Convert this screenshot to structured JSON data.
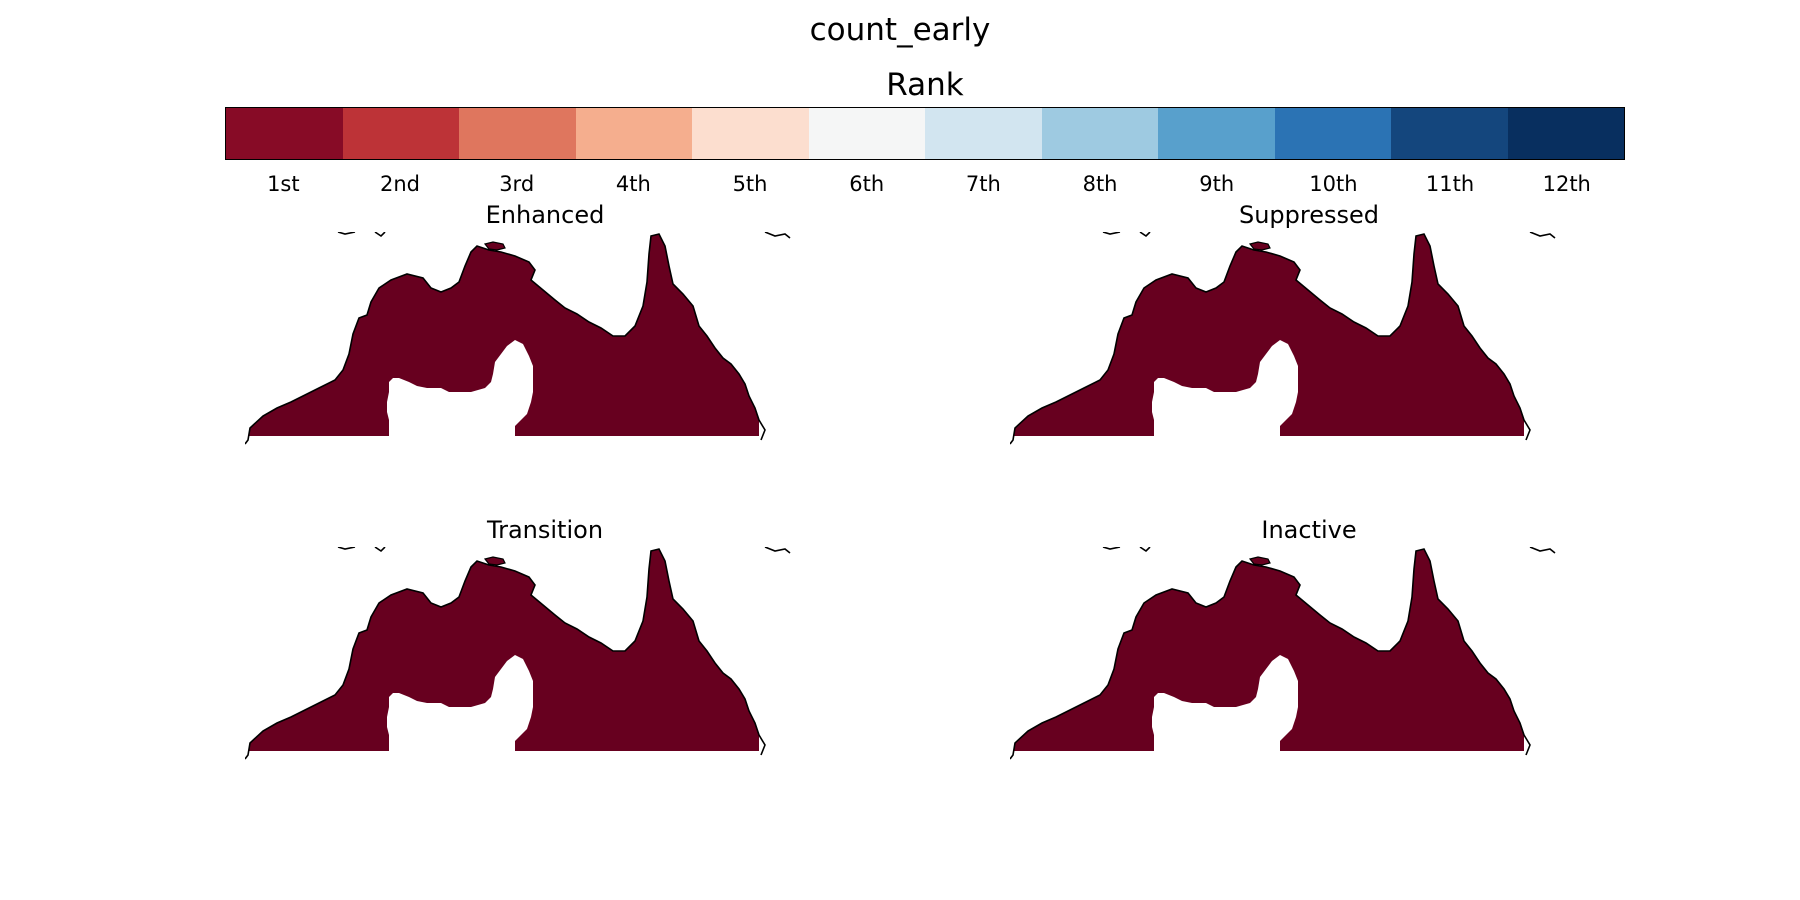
{
  "figure": {
    "title": "count_early"
  },
  "colorbar": {
    "title": "Rank",
    "colors": [
      "#870b26",
      "#bd3337",
      "#df765e",
      "#f5ae8e",
      "#fcdecf",
      "#f5f6f6",
      "#d2e5f0",
      "#9ecae1",
      "#58a0cc",
      "#2b73b4",
      "#14467d",
      "#082f5f"
    ],
    "tick_labels": [
      "1st",
      "2nd",
      "3rd",
      "4th",
      "5th",
      "6th",
      "7th",
      "8th",
      "9th",
      "10th",
      "11th",
      "12th"
    ]
  },
  "map_style": {
    "land_fill": "#67001f",
    "coastline": "#000000"
  },
  "panels": [
    {
      "title": "Transition"
    },
    {
      "title": "Inactive"
    },
    {
      "title": "Enhanced"
    },
    {
      "title": "Suppressed"
    }
  ]
}
